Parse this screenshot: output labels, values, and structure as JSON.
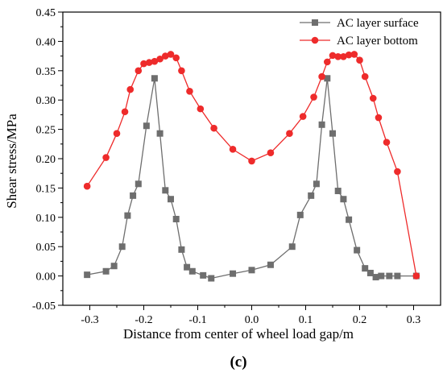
{
  "chart_data": {
    "type": "line",
    "xlabel": "Distance from center of wheel load gap/m",
    "ylabel": "Shear stress/MPa",
    "panel_label": "(c)",
    "xlim": [
      -0.35,
      0.35
    ],
    "ylim": [
      -0.05,
      0.45
    ],
    "x_ticks": [
      -0.3,
      -0.2,
      -0.1,
      0.0,
      0.1,
      0.2,
      0.3
    ],
    "x_tick_labels": [
      "-0.3",
      "-0.2",
      "-0.1",
      "0.0",
      "0.1",
      "0.2",
      "0.3"
    ],
    "y_ticks": [
      -0.05,
      0.0,
      0.05,
      0.1,
      0.15,
      0.2,
      0.25,
      0.3,
      0.35,
      0.4,
      0.45
    ],
    "y_tick_labels": [
      "-0.05",
      "0.00",
      "0.05",
      "0.10",
      "0.15",
      "0.20",
      "0.25",
      "0.30",
      "0.35",
      "0.40",
      "0.45"
    ],
    "grid": false,
    "legend_position": "top-right",
    "series": [
      {
        "name": "AC layer surface",
        "color": "#6e6e6e",
        "marker": "square",
        "x": [
          -0.305,
          -0.27,
          -0.255,
          -0.24,
          -0.23,
          -0.22,
          -0.21,
          -0.195,
          -0.18,
          -0.17,
          -0.16,
          -0.15,
          -0.14,
          -0.13,
          -0.12,
          -0.11,
          -0.09,
          -0.075,
          -0.035,
          0.0,
          0.035,
          0.075,
          0.09,
          0.11,
          0.12,
          0.13,
          0.14,
          0.15,
          0.16,
          0.17,
          0.18,
          0.195,
          0.21,
          0.22,
          0.23,
          0.24,
          0.255,
          0.27,
          0.305
        ],
        "y": [
          0.002,
          0.008,
          0.017,
          0.05,
          0.103,
          0.137,
          0.157,
          0.256,
          0.337,
          0.243,
          0.146,
          0.131,
          0.097,
          0.045,
          0.015,
          0.008,
          0.001,
          -0.004,
          0.004,
          0.01,
          0.019,
          0.05,
          0.104,
          0.137,
          0.157,
          0.258,
          0.337,
          0.243,
          0.145,
          0.131,
          0.096,
          0.044,
          0.013,
          0.005,
          -0.002,
          0.0,
          0.0,
          0.0,
          0.0
        ]
      },
      {
        "name": "AC layer bottom",
        "color": "#ee2b2b",
        "marker": "circle",
        "x": [
          -0.305,
          -0.27,
          -0.25,
          -0.235,
          -0.225,
          -0.21,
          -0.2,
          -0.19,
          -0.18,
          -0.17,
          -0.16,
          -0.15,
          -0.14,
          -0.13,
          -0.115,
          -0.095,
          -0.07,
          -0.035,
          0.0,
          0.035,
          0.07,
          0.095,
          0.115,
          0.13,
          0.14,
          0.15,
          0.16,
          0.17,
          0.18,
          0.19,
          0.2,
          0.21,
          0.225,
          0.235,
          0.25,
          0.27,
          0.305
        ],
        "y": [
          0.153,
          0.202,
          0.243,
          0.28,
          0.318,
          0.35,
          0.362,
          0.364,
          0.366,
          0.37,
          0.375,
          0.378,
          0.372,
          0.35,
          0.315,
          0.285,
          0.252,
          0.216,
          0.196,
          0.21,
          0.243,
          0.272,
          0.305,
          0.34,
          0.365,
          0.376,
          0.374,
          0.374,
          0.377,
          0.378,
          0.368,
          0.34,
          0.303,
          0.27,
          0.228,
          0.178,
          0.0
        ]
      }
    ]
  }
}
